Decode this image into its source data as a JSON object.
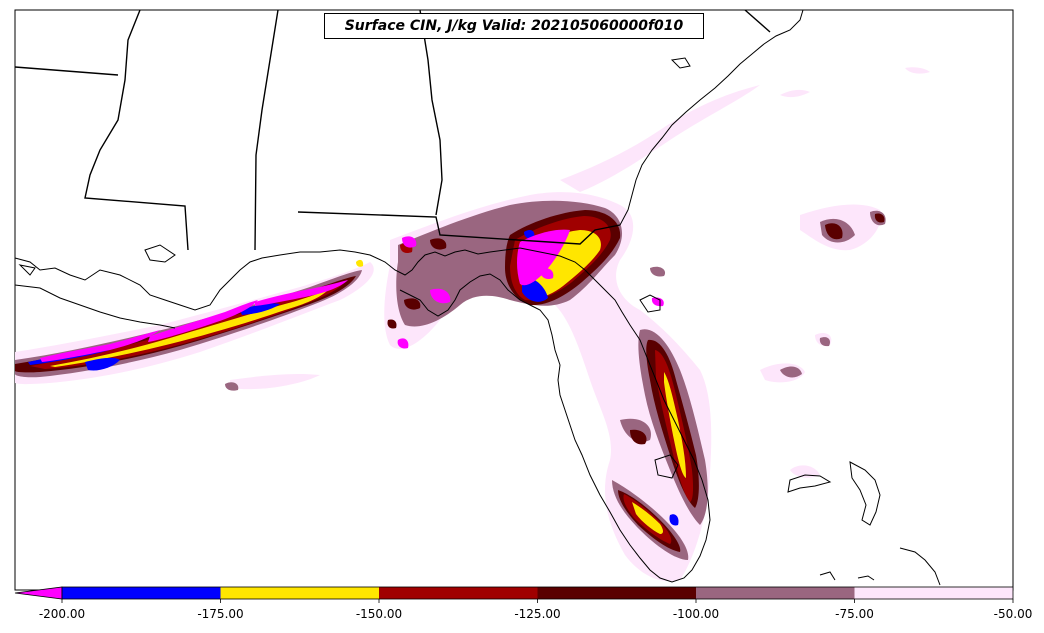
{
  "title": "Surface CIN, J/kg Valid: 202105060000f010",
  "colorbar": {
    "extend": "min",
    "under_color": "#ff00ff",
    "bins": [
      {
        "from": -200,
        "to": -175,
        "color": "#0000ff"
      },
      {
        "from": -175,
        "to": -150,
        "color": "#ffe600"
      },
      {
        "from": -150,
        "to": -125,
        "color": "#a00000"
      },
      {
        "from": -125,
        "to": -100,
        "color": "#5a0000"
      },
      {
        "from": -100,
        "to": -75,
        "color": "#9a6680"
      },
      {
        "from": -75,
        "to": -50,
        "color": "#fde6fb"
      }
    ],
    "tick_labels": [
      "-200.00",
      "-175.00",
      "-150.00",
      "-125.00",
      "-100.00",
      "-75.00",
      "-50.00"
    ]
  },
  "colors": {
    "background": "#ffffff",
    "coastline": "#000000"
  }
}
